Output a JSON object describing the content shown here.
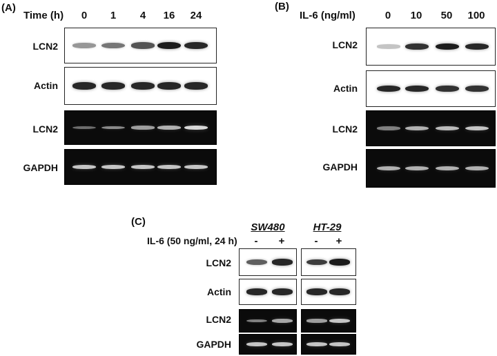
{
  "panel_a": {
    "label": "(A)",
    "condition_label": "Time (h)",
    "lanes": [
      "0",
      "1",
      "4",
      "16",
      "24"
    ],
    "rows": [
      {
        "name": "LCN2",
        "type": "western",
        "intensity": [
          0.35,
          0.5,
          0.65,
          0.9,
          0.85
        ]
      },
      {
        "name": "Actin",
        "type": "western",
        "intensity": [
          0.85,
          0.85,
          0.85,
          0.85,
          0.85
        ]
      },
      {
        "name": "LCN2",
        "type": "pcr",
        "intensity": [
          0.25,
          0.4,
          0.5,
          0.6,
          0.8
        ]
      },
      {
        "name": "GAPDH",
        "type": "pcr",
        "intensity": [
          0.7,
          0.7,
          0.7,
          0.7,
          0.7
        ]
      }
    ]
  },
  "panel_b": {
    "label": "(B)",
    "condition_label": "IL-6 (ng/ml)",
    "lanes": [
      "0",
      "10",
      "50",
      "100"
    ],
    "rows": [
      {
        "name": "LCN2",
        "type": "western",
        "intensity": [
          0.15,
          0.8,
          0.9,
          0.85
        ]
      },
      {
        "name": "Actin",
        "type": "western",
        "intensity": [
          0.85,
          0.85,
          0.8,
          0.8
        ]
      },
      {
        "name": "LCN2",
        "type": "pcr",
        "intensity": [
          0.35,
          0.6,
          0.65,
          0.7
        ]
      },
      {
        "name": "GAPDH",
        "type": "pcr",
        "intensity": [
          0.6,
          0.6,
          0.6,
          0.6
        ]
      }
    ]
  },
  "panel_c": {
    "label": "(C)",
    "condition_label": "IL-6 (50 ng/ml, 24 h)",
    "cell_lines": [
      "SW480",
      "HT-29"
    ],
    "lanes": [
      "-",
      "+",
      "-",
      "+"
    ],
    "rows": [
      {
        "name": "LCN2",
        "type": "western",
        "intensity": [
          0.6,
          0.85,
          0.75,
          0.9
        ]
      },
      {
        "name": "Actin",
        "type": "western",
        "intensity": [
          0.85,
          0.85,
          0.85,
          0.85
        ]
      },
      {
        "name": "LCN2",
        "type": "pcr",
        "intensity": [
          0.35,
          0.55,
          0.5,
          0.7
        ]
      },
      {
        "name": "GAPDH",
        "type": "pcr",
        "intensity": [
          0.7,
          0.7,
          0.7,
          0.7
        ]
      }
    ]
  }
}
